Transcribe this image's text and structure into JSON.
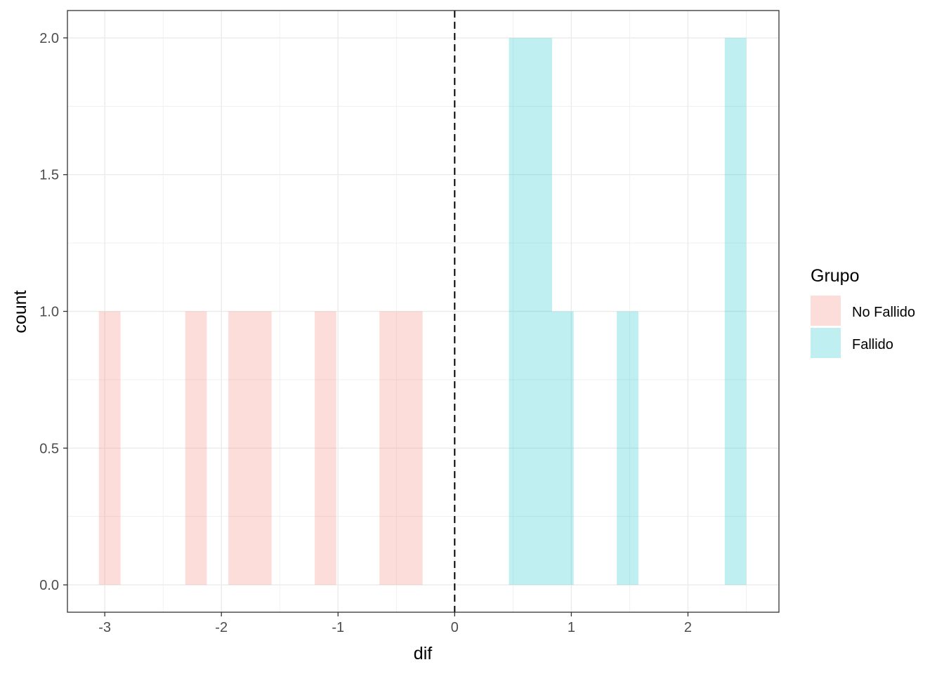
{
  "chart_data": {
    "type": "bar",
    "subtype": "histogram",
    "xlabel": "dif",
    "ylabel": "count",
    "xlim": [
      -3.32,
      2.78
    ],
    "ylim": [
      -0.1,
      2.1
    ],
    "x_ticks": [
      -3,
      -2,
      -1,
      0,
      1,
      2
    ],
    "x_tick_labels": [
      "-3",
      "-2",
      "-1",
      "0",
      "1",
      "2"
    ],
    "y_ticks": [
      0.0,
      0.5,
      1.0,
      1.5,
      2.0
    ],
    "y_tick_labels": [
      "0.0",
      "0.5",
      "1.0",
      "1.5",
      "2.0"
    ],
    "grid": true,
    "reference_line": {
      "x": 0,
      "style": "dashed"
    },
    "legend": {
      "title": "Grupo",
      "position": "right"
    },
    "series": [
      {
        "name": "No Fallido",
        "color": "#F8766D",
        "bins": [
          {
            "x0": -3.05,
            "x1": -2.865,
            "count": 1
          },
          {
            "x0": -2.31,
            "x1": -2.125,
            "count": 1
          },
          {
            "x0": -1.94,
            "x1": -1.755,
            "count": 1
          },
          {
            "x0": -1.755,
            "x1": -1.57,
            "count": 1
          },
          {
            "x0": -1.2,
            "x1": -1.015,
            "count": 1
          },
          {
            "x0": -0.645,
            "x1": -0.46,
            "count": 1
          },
          {
            "x0": -0.46,
            "x1": -0.275,
            "count": 1
          }
        ]
      },
      {
        "name": "Fallido",
        "color": "#00BFC4",
        "bins": [
          {
            "x0": 0.465,
            "x1": 0.65,
            "count": 2
          },
          {
            "x0": 0.65,
            "x1": 0.835,
            "count": 2
          },
          {
            "x0": 0.835,
            "x1": 1.02,
            "count": 1
          },
          {
            "x0": 1.39,
            "x1": 1.575,
            "count": 1
          },
          {
            "x0": 2.315,
            "x1": 2.5,
            "count": 2
          }
        ]
      }
    ]
  }
}
